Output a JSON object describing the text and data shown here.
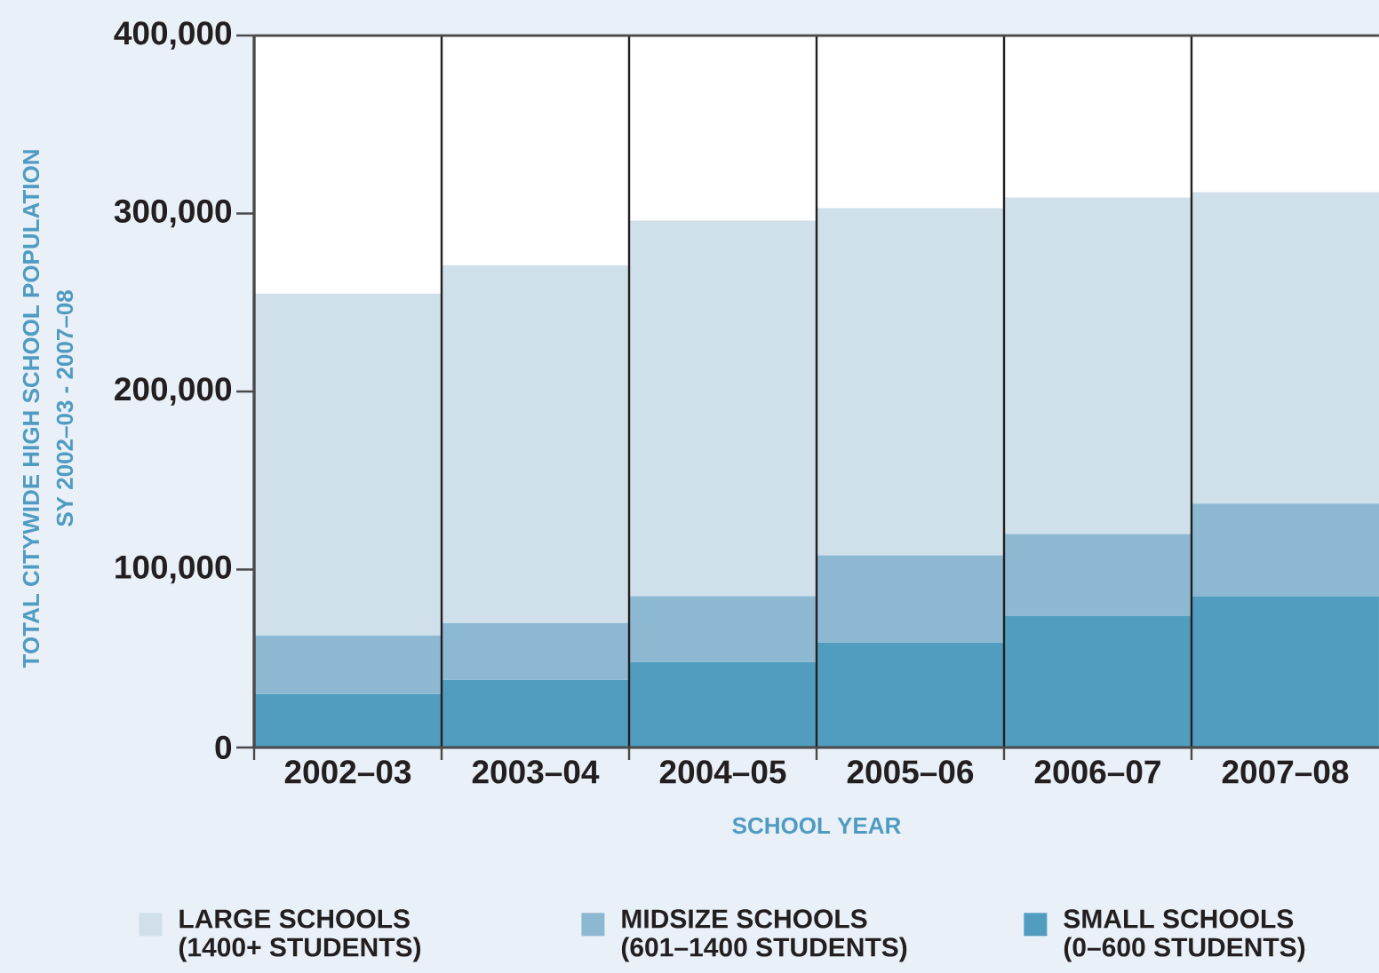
{
  "chart_data": {
    "type": "bar",
    "stacked": true,
    "categories": [
      "2002–03",
      "2003–04",
      "2004–05",
      "2005–06",
      "2006–07",
      "2007–08"
    ],
    "xlabel": "SCHOOL YEAR",
    "ylabel": "TOTAL CITYWIDE HIGH SCHOOL POPULATION SY 2002–03 - 2007–08",
    "series": [
      {
        "name": "SMALL SCHOOLS (0–600 STUDENTS)",
        "color": "#519dc0",
        "values": [
          30000,
          38000,
          48000,
          59000,
          74000,
          85000
        ]
      },
      {
        "name": "MIDSIZE SCHOOLS (601–1400 STUDENTS)",
        "color": "#8db8d1",
        "values": [
          33000,
          32000,
          37000,
          49000,
          46000,
          52000
        ]
      },
      {
        "name": "LARGE SCHOOLS (1400+ STUDENTS)",
        "color": "#cfe0eb",
        "values": [
          192000,
          201000,
          211000,
          195000,
          189000,
          175000
        ]
      }
    ],
    "ylim": [
      0,
      400000
    ],
    "yticks": [
      0,
      {
        "value": 100000,
        "label": "100,000"
      },
      {
        "value": 200000,
        "label": "200,000"
      },
      {
        "value": 300000,
        "label": "300,000"
      },
      {
        "value": 400000,
        "label": "400,000"
      }
    ],
    "grid": "x",
    "legend": "bottom"
  }
}
